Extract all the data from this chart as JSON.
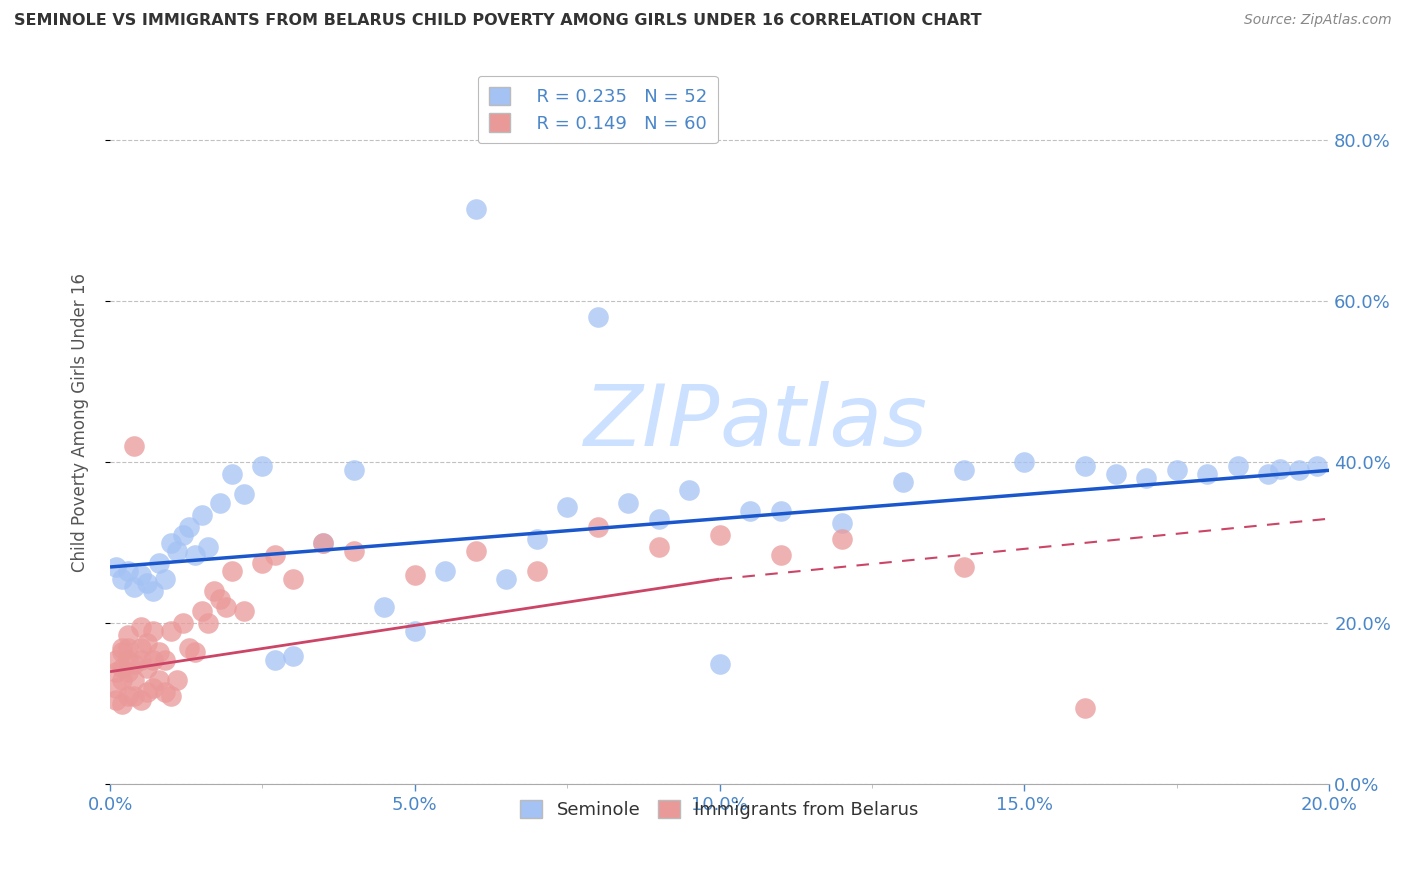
{
  "title": "SEMINOLE VS IMMIGRANTS FROM BELARUS CHILD POVERTY AMONG GIRLS UNDER 16 CORRELATION CHART",
  "source": "Source: ZipAtlas.com",
  "ylabel": "Child Poverty Among Girls Under 16",
  "blue_color": "#a4c2f4",
  "pink_color": "#ea9999",
  "blue_line_color": "#1a56cc",
  "pink_line_color": "#cc4466",
  "watermark_color": "#ddeeff",
  "background_color": "#ffffff",
  "grid_color": "#bbbbbb",
  "tick_color": "#4a86c8",
  "xlim": [
    0.0,
    0.2
  ],
  "ylim": [
    0.0,
    0.9
  ],
  "xticks": [
    0.0,
    0.05,
    0.1,
    0.15,
    0.2
  ],
  "yticks": [
    0.0,
    0.2,
    0.4,
    0.6,
    0.8
  ],
  "blue_line": [
    0.0,
    0.2,
    0.27,
    0.39
  ],
  "pink_line_solid": [
    0.0,
    0.1,
    0.14,
    0.255
  ],
  "pink_line_dashed": [
    0.1,
    0.2,
    0.255,
    0.33
  ],
  "seminole_x": [
    0.001,
    0.002,
    0.003,
    0.004,
    0.005,
    0.006,
    0.007,
    0.008,
    0.009,
    0.01,
    0.011,
    0.012,
    0.013,
    0.014,
    0.015,
    0.016,
    0.018,
    0.02,
    0.022,
    0.025,
    0.027,
    0.03,
    0.035,
    0.04,
    0.045,
    0.05,
    0.055,
    0.06,
    0.065,
    0.07,
    0.075,
    0.08,
    0.085,
    0.09,
    0.095,
    0.1,
    0.105,
    0.11,
    0.12,
    0.13,
    0.14,
    0.15,
    0.16,
    0.165,
    0.17,
    0.175,
    0.18,
    0.185,
    0.19,
    0.192,
    0.195,
    0.198
  ],
  "seminole_y": [
    0.27,
    0.255,
    0.265,
    0.245,
    0.26,
    0.25,
    0.24,
    0.275,
    0.255,
    0.3,
    0.29,
    0.31,
    0.32,
    0.285,
    0.335,
    0.295,
    0.35,
    0.385,
    0.36,
    0.395,
    0.155,
    0.16,
    0.3,
    0.39,
    0.22,
    0.19,
    0.265,
    0.715,
    0.255,
    0.305,
    0.345,
    0.58,
    0.35,
    0.33,
    0.365,
    0.15,
    0.34,
    0.34,
    0.325,
    0.375,
    0.39,
    0.4,
    0.395,
    0.385,
    0.38,
    0.39,
    0.385,
    0.395,
    0.385,
    0.392,
    0.39,
    0.395
  ],
  "belarus_x": [
    0.001,
    0.001,
    0.001,
    0.001,
    0.002,
    0.002,
    0.002,
    0.002,
    0.002,
    0.003,
    0.003,
    0.003,
    0.003,
    0.003,
    0.004,
    0.004,
    0.004,
    0.004,
    0.005,
    0.005,
    0.005,
    0.005,
    0.006,
    0.006,
    0.006,
    0.007,
    0.007,
    0.007,
    0.008,
    0.008,
    0.009,
    0.009,
    0.01,
    0.01,
    0.011,
    0.012,
    0.013,
    0.014,
    0.015,
    0.016,
    0.017,
    0.018,
    0.019,
    0.02,
    0.022,
    0.025,
    0.027,
    0.03,
    0.035,
    0.04,
    0.05,
    0.06,
    0.07,
    0.08,
    0.09,
    0.1,
    0.11,
    0.12,
    0.14,
    0.16
  ],
  "belarus_y": [
    0.14,
    0.12,
    0.155,
    0.105,
    0.1,
    0.13,
    0.145,
    0.165,
    0.17,
    0.11,
    0.14,
    0.155,
    0.17,
    0.185,
    0.11,
    0.13,
    0.15,
    0.42,
    0.105,
    0.155,
    0.17,
    0.195,
    0.115,
    0.145,
    0.175,
    0.12,
    0.155,
    0.19,
    0.13,
    0.165,
    0.115,
    0.155,
    0.11,
    0.19,
    0.13,
    0.2,
    0.17,
    0.165,
    0.215,
    0.2,
    0.24,
    0.23,
    0.22,
    0.265,
    0.215,
    0.275,
    0.285,
    0.255,
    0.3,
    0.29,
    0.26,
    0.29,
    0.265,
    0.32,
    0.295,
    0.31,
    0.285,
    0.305,
    0.27,
    0.095
  ]
}
